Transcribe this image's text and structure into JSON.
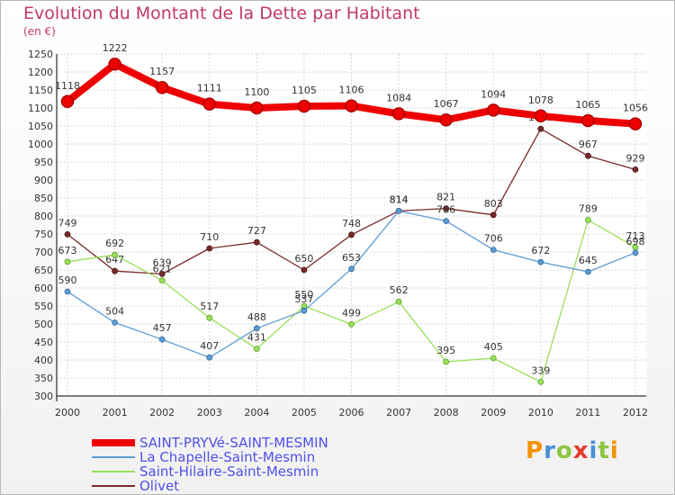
{
  "title": "Evolution du Montant de la Dette par Habitant",
  "unit": "(en €)",
  "logo": "Proxiti",
  "chart_data": {
    "type": "line",
    "title": "Evolution du Montant de la Dette par Habitant",
    "ylabel": "(en €)",
    "ylim": [
      300,
      1250
    ],
    "ytick_step": 50,
    "grid": true,
    "legend_position": "bottom-left",
    "x": [
      "2000",
      "2001",
      "2002",
      "2003",
      "2004",
      "2005",
      "2006",
      "2007",
      "2008",
      "2009",
      "2010",
      "2011",
      "2012"
    ],
    "series": [
      {
        "name": "SAINT-PRYVé-SAINT-MESMIN",
        "color": "#ee0000",
        "values": [
          1118,
          1222,
          1157,
          1111,
          1100,
          1105,
          1106,
          1084,
          1067,
          1094,
          1078,
          1065,
          1056
        ]
      },
      {
        "name": "La Chapelle-Saint-Mesmin",
        "color": "#5b9bd5",
        "values": [
          590,
          504,
          457,
          407,
          488,
          537,
          653,
          814,
          786,
          706,
          672,
          645,
          698
        ]
      },
      {
        "name": "Saint-Hilaire-Saint-Mesmin",
        "color": "#99e05a",
        "values": [
          673,
          692,
          621,
          517,
          431,
          550,
          499,
          562,
          395,
          405,
          339,
          789,
          713
        ]
      },
      {
        "name": "Olivet",
        "color": "#7a2a2a",
        "values": [
          749,
          647,
          639,
          710,
          727,
          650,
          748,
          814,
          821,
          803,
          1042,
          967,
          929
        ]
      }
    ]
  }
}
